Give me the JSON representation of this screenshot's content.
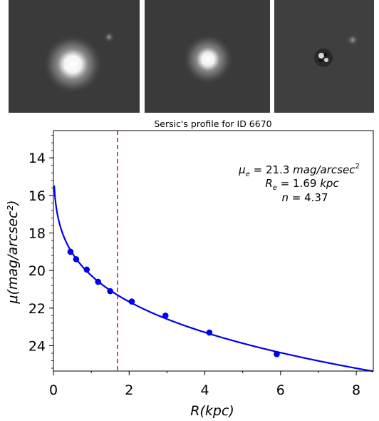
{
  "panels": [
    {
      "name": "galaxy-image",
      "label": ""
    },
    {
      "name": "model-image",
      "label": ""
    },
    {
      "name": "residual-image",
      "label": ""
    }
  ],
  "chart_data": {
    "type": "scatter",
    "title": "Sersic's profile for ID 6670",
    "xlabel": "R(kpc)",
    "ylabel": "μ(mag/arcsec²)",
    "xlim": [
      0,
      8.45
    ],
    "ylim": [
      25.35,
      12.55
    ],
    "y_inverted": true,
    "xticks": [
      0,
      2,
      4,
      6,
      8
    ],
    "yticks": [
      14,
      16,
      18,
      20,
      22,
      24
    ],
    "grid": false,
    "colors": {
      "points": "#0000ee",
      "fit": "#0000ee",
      "re_line": "#dd2222"
    },
    "points": {
      "x": [
        0.45,
        0.6,
        0.88,
        1.18,
        1.5,
        2.07,
        2.96,
        4.12,
        5.9
      ],
      "y": [
        19.0,
        19.4,
        19.95,
        20.6,
        21.1,
        21.65,
        22.4,
        23.3,
        24.45
      ]
    },
    "fit": {
      "model": "sersic",
      "mu_e": 21.3,
      "R_e": 1.69,
      "n": 4.37,
      "x_start": 0.02,
      "x_end": 8.45
    },
    "vline_x": 1.69,
    "annotations": [
      {
        "key": "mu",
        "sym": "μ",
        "sub": "e",
        "text": " = 21.3 ",
        "unit": "mag/arcsec",
        "sup": "2"
      },
      {
        "key": "re",
        "sym": "R",
        "sub": "e",
        "text": " = 1.69 ",
        "unit": "kpc",
        "sup": ""
      },
      {
        "key": "n",
        "sym": "n",
        "sub": "",
        "text": " = 4.37",
        "unit": "",
        "sup": ""
      }
    ]
  }
}
